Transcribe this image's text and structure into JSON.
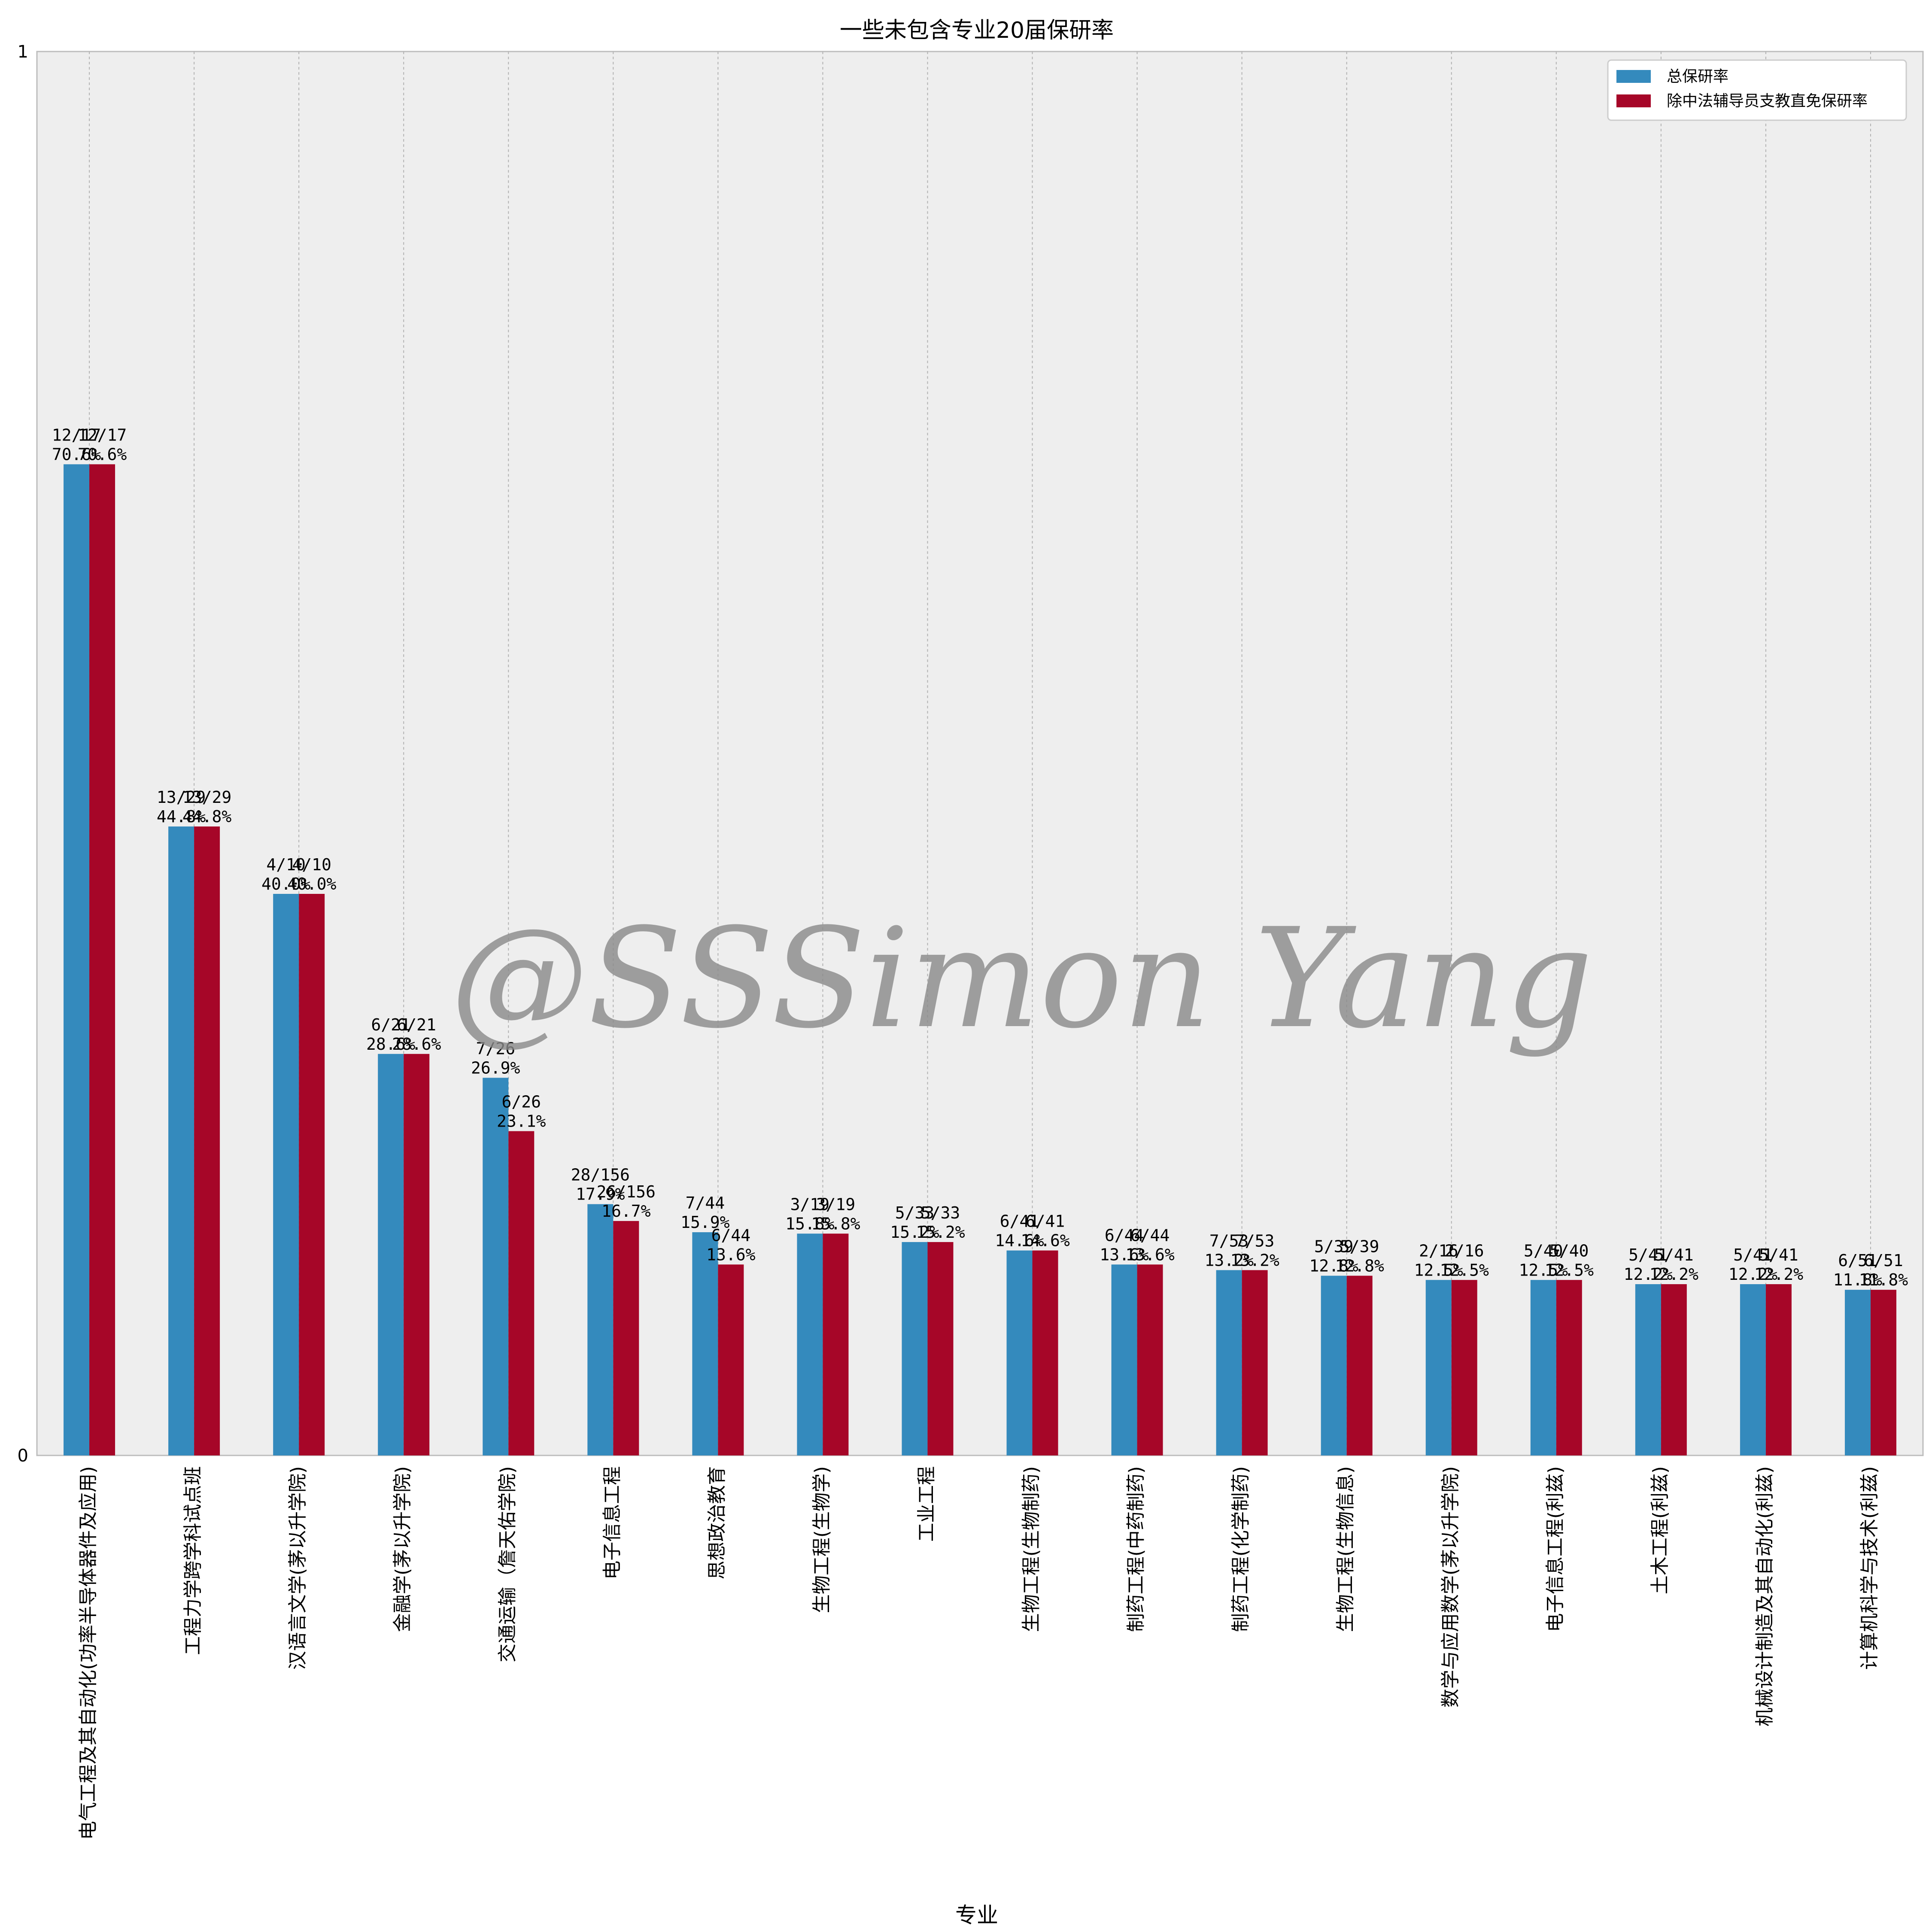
{
  "chart_data": {
    "type": "bar",
    "title": "一些未包含专业20届保研率",
    "xlabel": "专业",
    "ylabel": "",
    "ylim": [
      0,
      1
    ],
    "yticks": [
      "0",
      "1"
    ],
    "grid": true,
    "legend_position": "top-right",
    "categories": [
      "电气工程及其自动化(功率半导体器件及应用)",
      "工程力学跨学科试点班",
      "汉语言文学(茅以升学院)",
      "金融学(茅以升学院)",
      "交通运输（詹天佑学院)",
      "电子信息工程",
      "思想政治教育",
      "生物工程(生物学)",
      "工业工程",
      "生物工程(生物制药)",
      "制药工程(中药制药)",
      "制药工程(化学制药)",
      "生物工程(生物信息)",
      "数学与应用数学(茅以升学院)",
      "电子信息工程(利兹)",
      "土木工程(利兹)",
      "机械设计制造及其自动化(利兹)",
      "计算机科学与技术(利兹)"
    ],
    "series": [
      {
        "name": "总保研率",
        "color": "#348ABD",
        "values": [
          0.706,
          0.448,
          0.4,
          0.286,
          0.269,
          0.179,
          0.159,
          0.158,
          0.152,
          0.146,
          0.136,
          0.132,
          0.128,
          0.125,
          0.125,
          0.122,
          0.122,
          0.118
        ],
        "labels": [
          [
            "12/17",
            "70.6%"
          ],
          [
            "13/29",
            "44.8%"
          ],
          [
            "4/10",
            "40.0%"
          ],
          [
            "6/21",
            "28.6%"
          ],
          [
            "7/26",
            "26.9%"
          ],
          [
            "28/156",
            "17.9%"
          ],
          [
            "7/44",
            "15.9%"
          ],
          [
            "3/19",
            "15.8%"
          ],
          [
            "5/33",
            "15.2%"
          ],
          [
            "6/41",
            "14.6%"
          ],
          [
            "6/44",
            "13.6%"
          ],
          [
            "7/53",
            "13.2%"
          ],
          [
            "5/39",
            "12.8%"
          ],
          [
            "2/16",
            "12.5%"
          ],
          [
            "5/40",
            "12.5%"
          ],
          [
            "5/41",
            "12.2%"
          ],
          [
            "5/41",
            "12.2%"
          ],
          [
            "6/51",
            "11.8%"
          ]
        ]
      },
      {
        "name": "除中法辅导员支教直免保研率",
        "color": "#A60628",
        "values": [
          0.706,
          0.448,
          0.4,
          0.286,
          0.231,
          0.167,
          0.136,
          0.158,
          0.152,
          0.146,
          0.136,
          0.132,
          0.128,
          0.125,
          0.125,
          0.122,
          0.122,
          0.118
        ],
        "labels": [
          [
            "12/17",
            "70.6%"
          ],
          [
            "13/29",
            "44.8%"
          ],
          [
            "4/10",
            "40.0%"
          ],
          [
            "6/21",
            "28.6%"
          ],
          [
            "6/26",
            "23.1%"
          ],
          [
            "26/156",
            "16.7%"
          ],
          [
            "6/44",
            "13.6%"
          ],
          [
            "3/19",
            "15.8%"
          ],
          [
            "5/33",
            "15.2%"
          ],
          [
            "6/41",
            "14.6%"
          ],
          [
            "6/44",
            "13.6%"
          ],
          [
            "7/53",
            "13.2%"
          ],
          [
            "5/39",
            "12.8%"
          ],
          [
            "2/16",
            "12.5%"
          ],
          [
            "5/40",
            "12.5%"
          ],
          [
            "5/41",
            "12.2%"
          ],
          [
            "5/41",
            "12.2%"
          ],
          [
            "6/51",
            "11.8%"
          ]
        ]
      }
    ],
    "watermark": "@SSSimon Yang"
  }
}
